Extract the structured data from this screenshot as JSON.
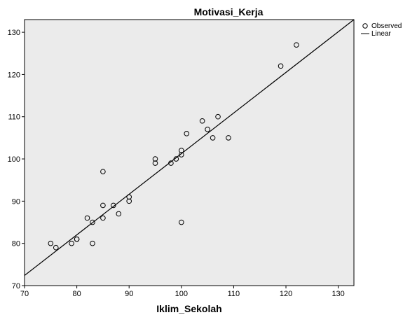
{
  "chart_data": {
    "type": "scatter",
    "title": "Motivasi_Kerja",
    "xlabel": "Iklim_Sekolah",
    "ylabel": "",
    "xlim": [
      70,
      133
    ],
    "ylim": [
      70,
      133
    ],
    "xticks": [
      70,
      80,
      90,
      100,
      110,
      120,
      130
    ],
    "yticks": [
      70,
      80,
      90,
      100,
      110,
      120,
      130
    ],
    "grid": false,
    "legend": {
      "placement": "top-right-outside",
      "observed_label": "Observed",
      "linear_label": "Linear"
    },
    "series": [
      {
        "name": "Observed",
        "kind": "points",
        "points": [
          [
            75,
            80
          ],
          [
            76,
            79
          ],
          [
            79,
            80
          ],
          [
            80,
            81
          ],
          [
            80,
            81
          ],
          [
            82,
            86
          ],
          [
            83,
            85
          ],
          [
            83,
            80
          ],
          [
            85,
            97
          ],
          [
            85,
            89
          ],
          [
            85,
            86
          ],
          [
            87,
            89
          ],
          [
            88,
            87
          ],
          [
            90,
            91
          ],
          [
            90,
            90
          ],
          [
            95,
            100
          ],
          [
            95,
            99
          ],
          [
            98,
            99
          ],
          [
            99,
            100
          ],
          [
            100,
            102
          ],
          [
            100,
            101
          ],
          [
            100,
            85
          ],
          [
            101,
            106
          ],
          [
            104,
            109
          ],
          [
            105,
            107
          ],
          [
            106,
            105
          ],
          [
            107,
            110
          ],
          [
            109,
            105
          ],
          [
            119,
            122
          ],
          [
            122,
            127
          ]
        ]
      },
      {
        "name": "Linear",
        "kind": "line",
        "points": [
          [
            70,
            72.4
          ],
          [
            133,
            133
          ]
        ]
      }
    ],
    "colors": {
      "plot_background": "#ebebeb",
      "axis": "#000000",
      "marker_edge": "#000000",
      "fit_line": "#000000"
    }
  }
}
